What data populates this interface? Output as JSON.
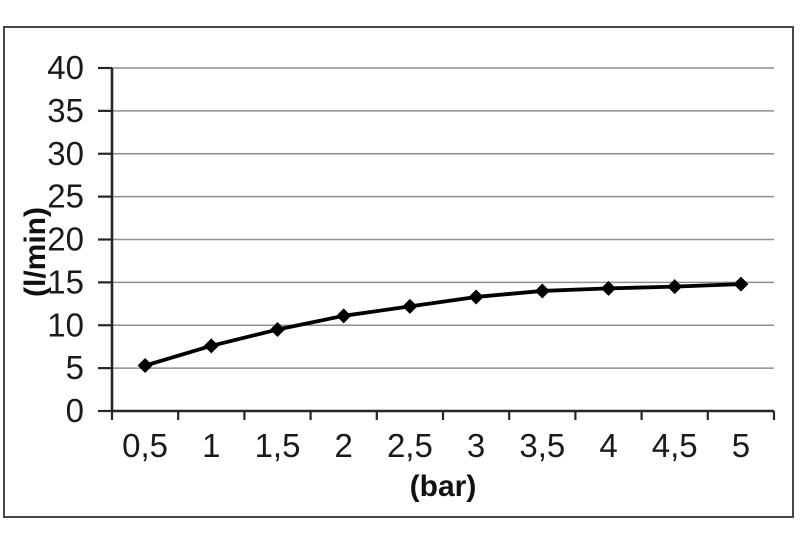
{
  "chart_data": {
    "type": "line",
    "title": "",
    "categories": [
      "0,5",
      "1",
      "1,5",
      "2",
      "2,5",
      "3",
      "3,5",
      "4",
      "4,5",
      "5"
    ],
    "values": [
      5.3,
      7.6,
      9.5,
      11.1,
      12.2,
      13.3,
      14.0,
      14.3,
      14.5,
      14.8
    ],
    "xlabel": "(bar)",
    "ylabel": "(l/min)",
    "ylim": [
      0,
      40
    ],
    "yticks": [
      0,
      5,
      10,
      15,
      20,
      25,
      30,
      35,
      40
    ],
    "grid": true,
    "legend": false,
    "marker": "diamond",
    "colors": {
      "line": "#000000",
      "marker": "#000000",
      "grid": "#8f8f8f",
      "axis": "#262626",
      "text": "#1a1a1a",
      "frame_border": "#474747",
      "background": "#ffffff"
    }
  }
}
